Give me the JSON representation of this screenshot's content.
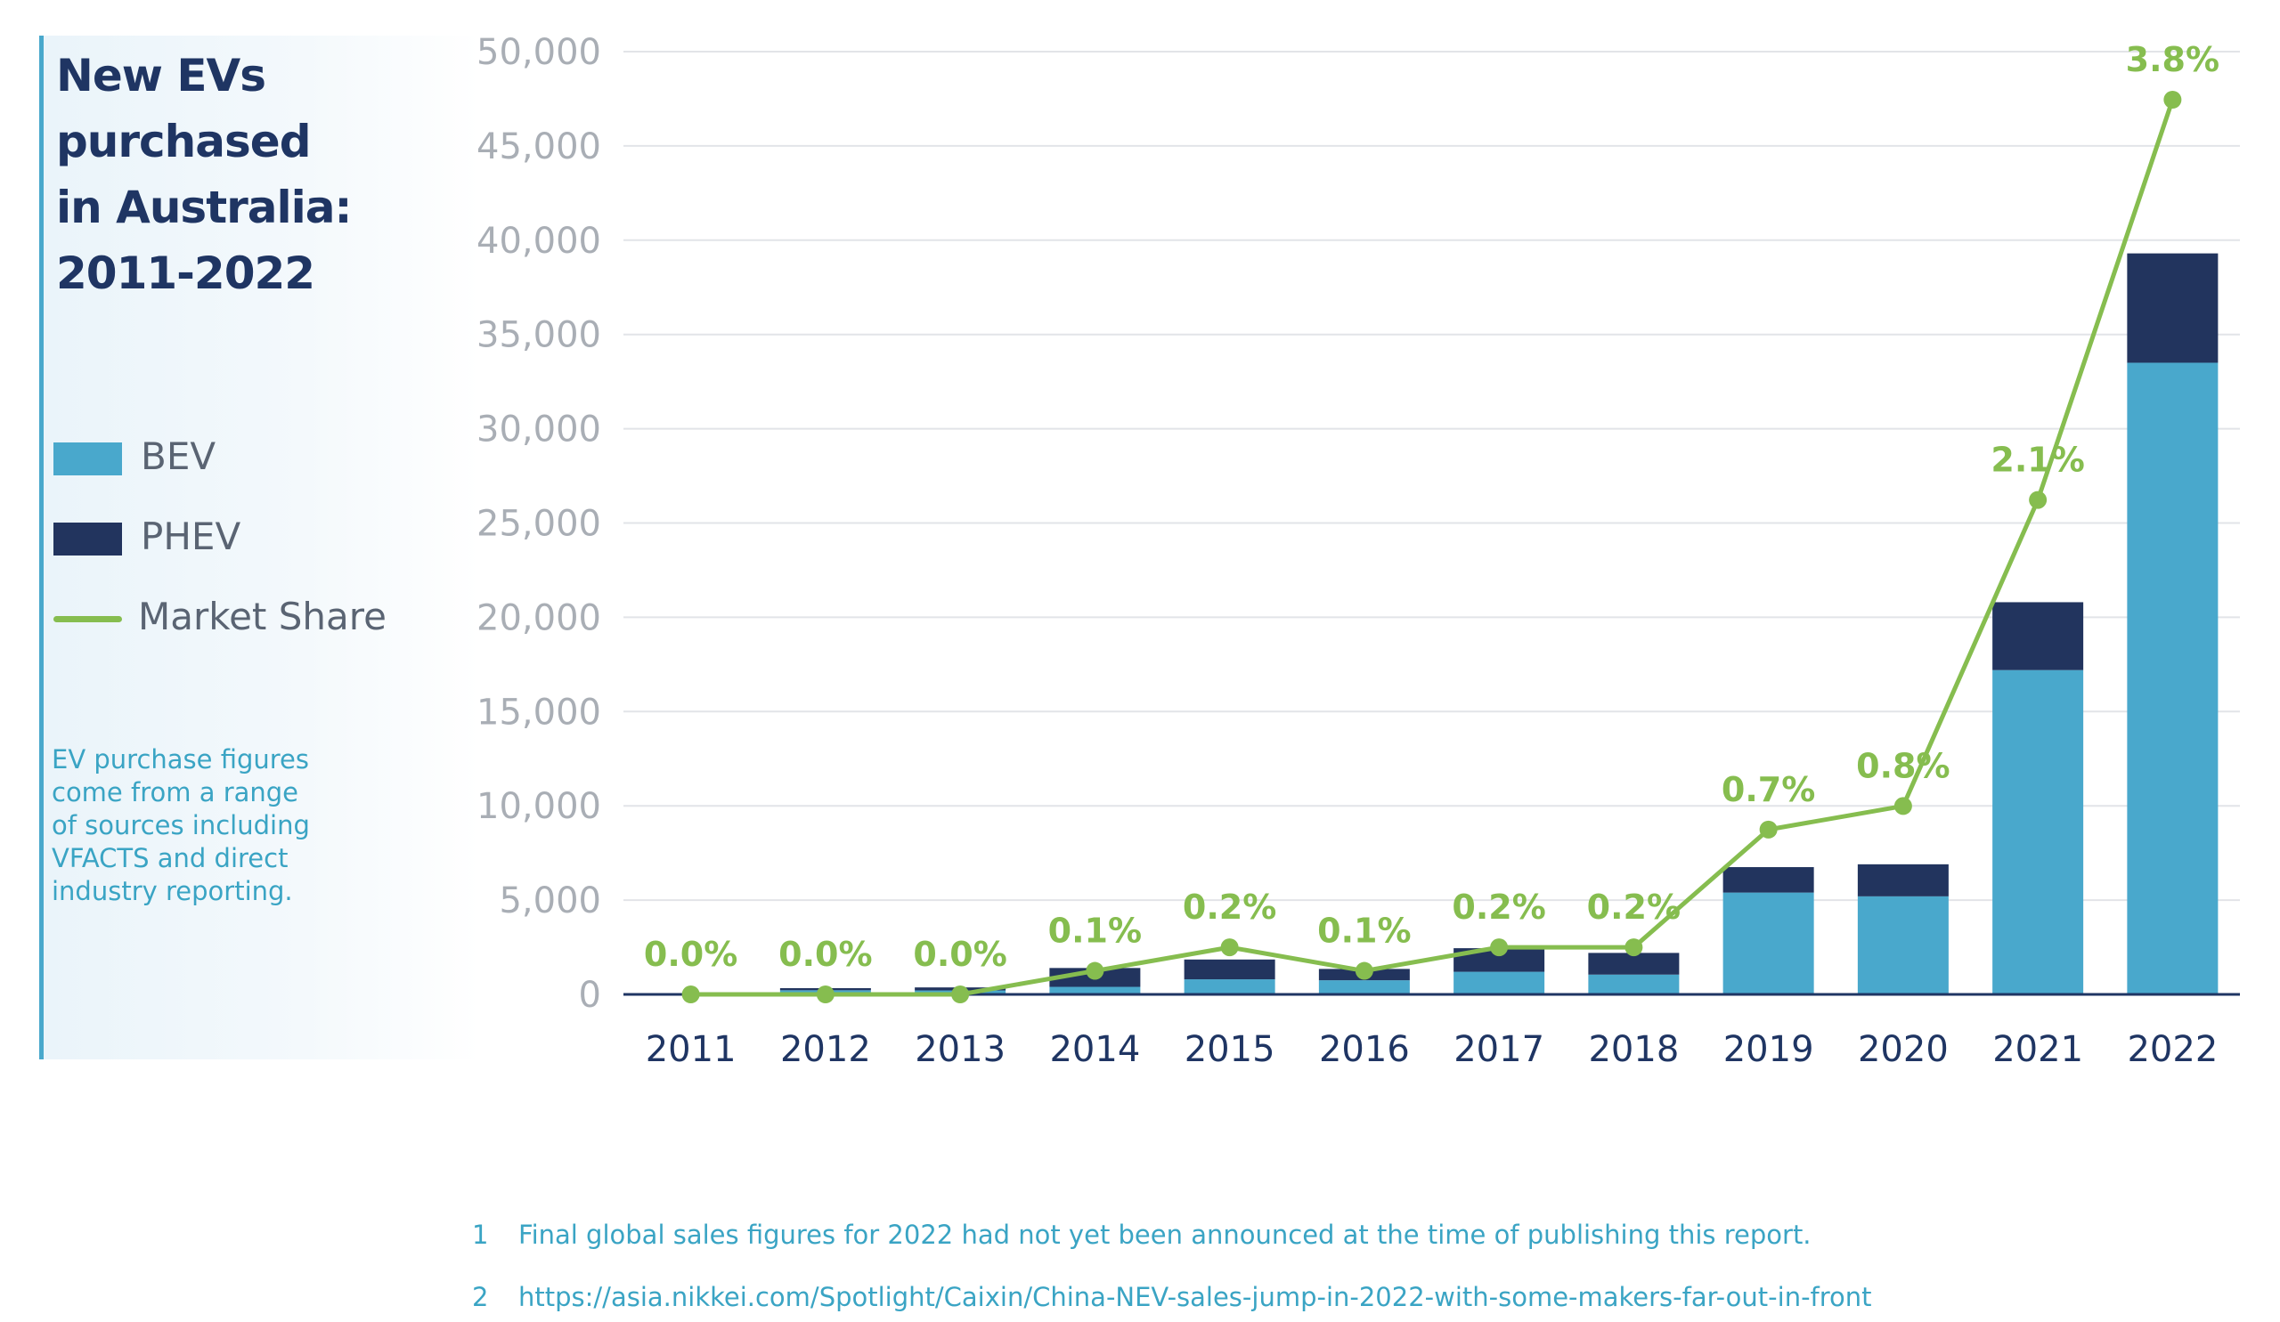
{
  "chart_data": {
    "type": "bar",
    "title": "New EVs purchased in Australia: 2011-2022",
    "stacked": true,
    "categories": [
      "2011",
      "2012",
      "2013",
      "2014",
      "2015",
      "2016",
      "2017",
      "2018",
      "2019",
      "2020",
      "2021",
      "2022"
    ],
    "series": [
      {
        "name": "BEV",
        "color": "#49a8cc",
        "values": [
          40,
          220,
          210,
          400,
          800,
          750,
          1200,
          1050,
          5400,
          5200,
          17200,
          33500
        ]
      },
      {
        "name": "PHEV",
        "color": "#22345e",
        "values": [
          10,
          110,
          160,
          1000,
          1050,
          600,
          1250,
          1150,
          1350,
          1700,
          3600,
          5800
        ]
      }
    ],
    "line_series": {
      "name": "Market Share",
      "color": "#86bd4f",
      "labels": [
        "0.0%",
        "0.0%",
        "0.0%",
        "0.1%",
        "0.2%",
        "0.1%",
        "0.2%",
        "0.2%",
        "0.7%",
        "0.8%",
        "2.1%",
        "3.8%"
      ],
      "values": [
        0.0,
        0.0,
        0.0,
        0.1,
        0.2,
        0.1,
        0.2,
        0.2,
        0.7,
        0.8,
        2.1,
        3.8
      ]
    },
    "y_ticks": [
      "50,000",
      "45,000",
      "40,000",
      "35,000",
      "30,000",
      "25,000",
      "20,000",
      "15,000",
      "10,000",
      "5,000",
      "0"
    ],
    "ylim": [
      0,
      50000
    ],
    "grid": true
  },
  "panel": {
    "title_lines": [
      "New EVs",
      "purchased",
      "in Australia:",
      "2011-2022"
    ],
    "legend": [
      {
        "label": "BEV",
        "color": "#49a8cc",
        "icon": "bar-swatch"
      },
      {
        "label": "PHEV",
        "color": "#22345e",
        "icon": "bar-swatch"
      },
      {
        "label": "Market Share",
        "color": "#86bd4f",
        "icon": "line-swatch"
      }
    ],
    "source_lines": [
      "EV purchase figures",
      "come from a range",
      "of sources including",
      "VFACTS and direct",
      "industry reporting."
    ]
  },
  "footnotes": [
    {
      "num": "1",
      "text": "Final global sales figures for 2022 had not yet been announced at the time of publishing this report."
    },
    {
      "num": "2",
      "text": "https://asia.nikkei.com/Spotlight/Caixin/China-NEV-sales-jump-in-2022-with-some-makers-far-out-in-front"
    }
  ]
}
